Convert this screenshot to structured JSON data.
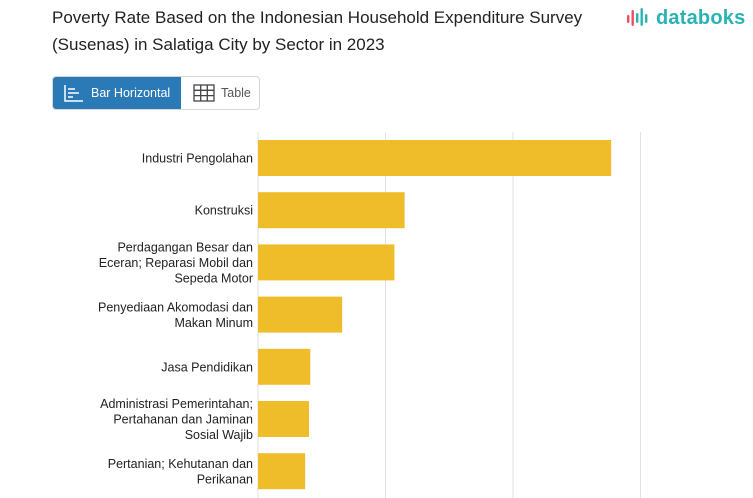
{
  "header": {
    "title": "Poverty Rate Based on the Indonesian Household Expenditure Survey (Susenas) in Salatiga City by Sector in 2023",
    "logo_text": "databoks"
  },
  "view_toggle": {
    "bar_label": "Bar Horizontal",
    "table_label": "Table"
  },
  "colors": {
    "bar": "#f0bd2a",
    "grid": "#e2e2e2",
    "toggle_active": "#2a7ab8",
    "logo_teal": "#2ab3b3",
    "logo_red": "#e8505b"
  },
  "chart_data": {
    "type": "bar",
    "orientation": "horizontal",
    "categories": [
      [
        "Industri Pengolahan"
      ],
      [
        "Konstruksi"
      ],
      [
        "Perdagangan Besar dan",
        "Eceran; Reparasi Mobil dan",
        "Sepeda Motor"
      ],
      [
        "Penyediaan Akomodasi dan",
        "Makan Minum"
      ],
      [
        "Jasa Pendidikan"
      ],
      [
        "Administrasi Pemerintahan;",
        "Pertahanan dan Jaminan",
        "Sosial Wajib"
      ],
      [
        "Pertanian; Kehutanan dan",
        "Perikanan"
      ]
    ],
    "values": [
      27.7,
      11.5,
      10.7,
      6.6,
      4.1,
      4.0,
      3.7
    ],
    "xlim": [
      0,
      40
    ],
    "grid": true,
    "xlabel": "",
    "ylabel": ""
  }
}
